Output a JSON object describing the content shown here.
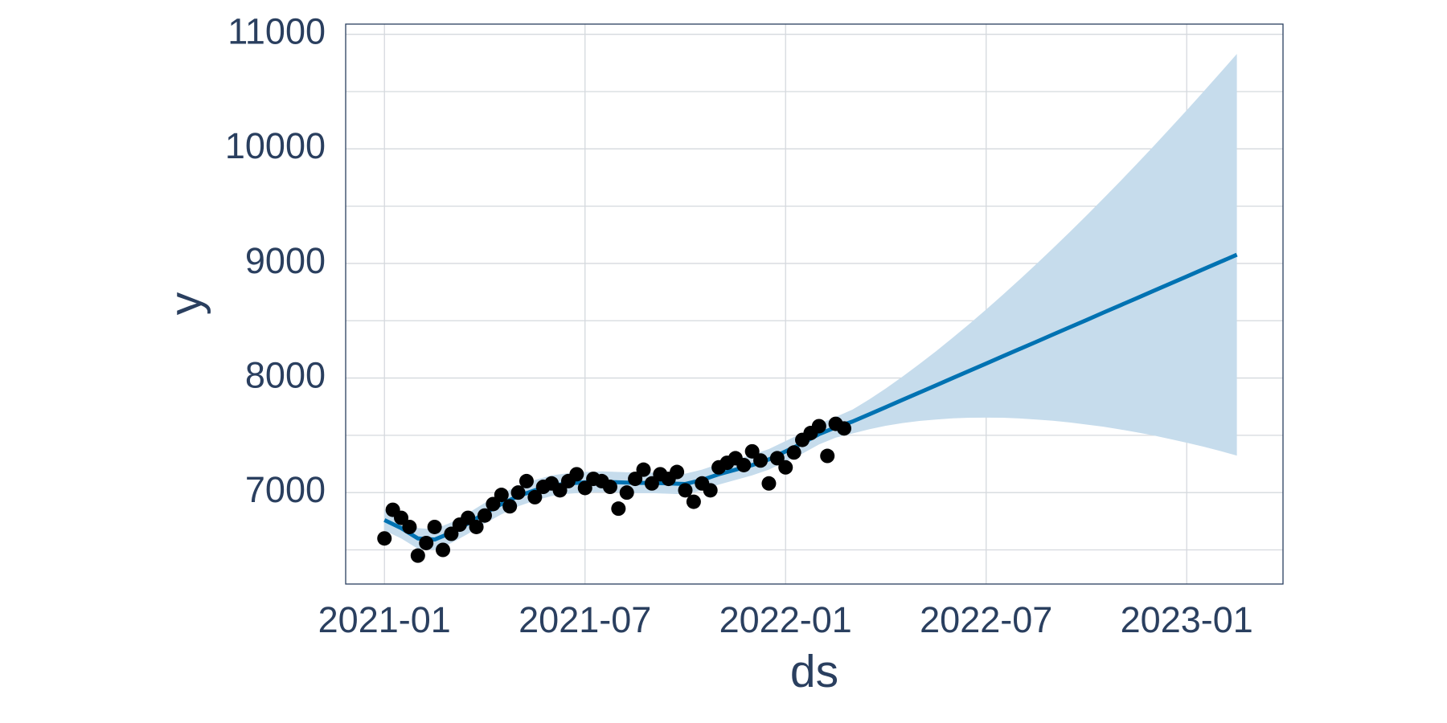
{
  "chart_data": {
    "type": "line",
    "xlabel": "ds",
    "ylabel": "y",
    "xlim": [
      -1.16,
      26.88
    ],
    "ylim": [
      6202,
      11089
    ],
    "xticks": [
      {
        "value": 0,
        "label": "2021-01"
      },
      {
        "value": 6,
        "label": "2021-07"
      },
      {
        "value": 12,
        "label": "2022-01"
      },
      {
        "value": 18,
        "label": "2022-07"
      },
      {
        "value": 24,
        "label": "2023-01"
      }
    ],
    "yticks": [
      7000,
      8000,
      9000,
      10000,
      11000
    ],
    "yminor": [
      6500,
      7500,
      8500,
      9500,
      10500
    ],
    "grid": true,
    "band_color": "#c6dcec",
    "series": [
      {
        "mode": "markers",
        "color": "#000000",
        "x": [
          0,
          0.25,
          0.5,
          0.75,
          1,
          1.25,
          1.5,
          1.75,
          2,
          2.25,
          2.5,
          2.75,
          3,
          3.25,
          3.5,
          3.75,
          4,
          4.25,
          4.5,
          4.75,
          5,
          5.25,
          5.5,
          5.75,
          6,
          6.25,
          6.5,
          6.75,
          7,
          7.25,
          7.5,
          7.75,
          8,
          8.25,
          8.5,
          8.75,
          9,
          9.25,
          9.5,
          9.75,
          10,
          10.25,
          10.5,
          10.75,
          11,
          11.25,
          11.5,
          11.75,
          12,
          12.25,
          12.5,
          12.75,
          13,
          13.25,
          13.5,
          13.75
        ],
        "values": [
          6600,
          6850,
          6780,
          6700,
          6450,
          6560,
          6700,
          6500,
          6640,
          6720,
          6780,
          6700,
          6800,
          6900,
          6980,
          6880,
          7000,
          7100,
          6960,
          7050,
          7080,
          7020,
          7100,
          7160,
          7040,
          7120,
          7100,
          7050,
          6860,
          7000,
          7120,
          7200,
          7080,
          7160,
          7120,
          7180,
          7020,
          6920,
          7080,
          7020,
          7220,
          7260,
          7300,
          7240,
          7360,
          7280,
          7080,
          7300,
          7220,
          7350,
          7460,
          7520,
          7580,
          7320,
          7600,
          7560
        ]
      },
      {
        "mode": "line",
        "color": "#0072b2",
        "x": [
          0,
          0.5,
          1,
          1.5,
          2,
          2.5,
          3,
          3.5,
          4,
          4.5,
          5,
          5.5,
          6,
          6.5,
          7,
          7.5,
          8,
          8.5,
          9,
          9.5,
          10,
          10.5,
          11,
          11.5,
          12,
          12.5,
          13,
          13.5,
          14,
          14.5,
          15,
          15.5,
          16,
          16.5,
          17,
          17.5,
          18,
          18.5,
          19,
          19.5,
          20,
          20.5,
          21,
          21.5,
          22,
          22.5,
          23,
          23.5,
          24,
          24.5,
          25,
          25.5
        ],
        "values": [
          6760,
          6690,
          6600,
          6590,
          6650,
          6730,
          6820,
          6900,
          6970,
          7020,
          7060,
          7080,
          7090,
          7095,
          7090,
          7085,
          7085,
          7080,
          7075,
          7110,
          7160,
          7200,
          7240,
          7290,
          7360,
          7430,
          7510,
          7570,
          7620,
          7683,
          7746,
          7810,
          7873,
          7936,
          8000,
          8063,
          8126,
          8190,
          8253,
          8316,
          8380,
          8443,
          8506,
          8570,
          8633,
          8696,
          8760,
          8823,
          8886,
          8950,
          9013,
          9076
        ],
        "upper": [
          6850,
          6780,
          6690,
          6680,
          6740,
          6820,
          6910,
          6990,
          7060,
          7110,
          7150,
          7170,
          7180,
          7185,
          7180,
          7175,
          7175,
          7170,
          7165,
          7200,
          7250,
          7290,
          7330,
          7380,
          7450,
          7520,
          7600,
          7660,
          7724,
          7813,
          7909,
          8013,
          8121,
          8234,
          8352,
          8473,
          8598,
          8727,
          8859,
          8994,
          9133,
          9274,
          9418,
          9565,
          9714,
          9866,
          10021,
          10178,
          10337,
          10499,
          10663,
          10829
        ],
        "lower": [
          6670,
          6600,
          6510,
          6500,
          6560,
          6640,
          6730,
          6810,
          6880,
          6930,
          6970,
          6990,
          7000,
          7005,
          7000,
          6995,
          6995,
          6990,
          6985,
          7020,
          7070,
          7110,
          7150,
          7200,
          7270,
          7340,
          7420,
          7480,
          7516,
          7553,
          7583,
          7607,
          7625,
          7638,
          7648,
          7653,
          7654,
          7653,
          7647,
          7638,
          7627,
          7612,
          7594,
          7575,
          7552,
          7526,
          7499,
          7468,
          7435,
          7401,
          7363,
          7323
        ]
      }
    ]
  }
}
